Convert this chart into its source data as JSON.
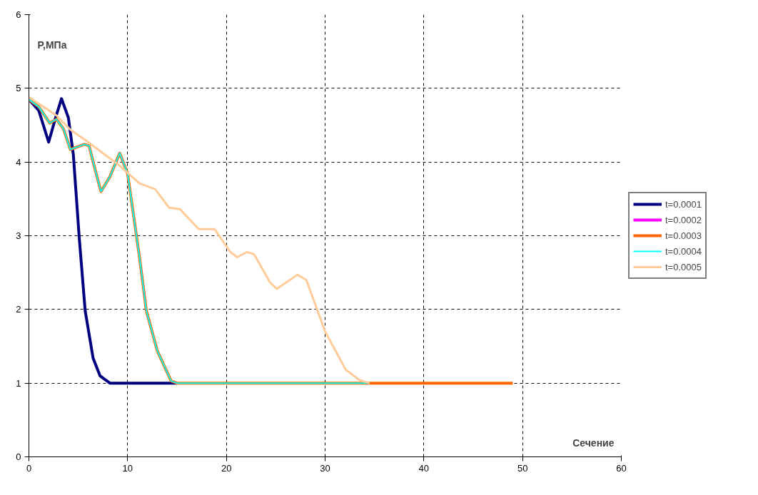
{
  "chart_data": {
    "type": "line",
    "xlabel": "Сечение",
    "ylabel": "P,МПа",
    "xlim": [
      0,
      60
    ],
    "xticks": [
      0,
      10,
      20,
      30,
      40,
      50,
      60
    ],
    "ylim": [
      0,
      6
    ],
    "yticks": [
      0,
      1,
      2,
      3,
      4,
      5,
      6
    ],
    "grid": true,
    "legend": "right",
    "marker": "none",
    "line_style": "solid",
    "series": [
      {
        "name": "t=0.0001",
        "color": "#000080",
        "x": [
          0,
          1,
          2,
          2.7,
          3.3,
          4,
          4.5,
          5.1,
          5.7,
          6.5,
          7.2,
          8.2,
          10,
          15
        ],
        "values": [
          4.85,
          4.7,
          4.27,
          4.6,
          4.86,
          4.6,
          4.1,
          2.97,
          1.98,
          1.34,
          1.1,
          1.0,
          1.0,
          1.0
        ]
      },
      {
        "name": "t=0.0002",
        "color": "#ff00ff"
      },
      {
        "name": "t=0.0003",
        "color": "#ff6600",
        "x": [
          0,
          1,
          2.1,
          2.8,
          3.5,
          4.2,
          5.6,
          6.1,
          6.7,
          7.3,
          8.2,
          9.2,
          10,
          11.2,
          11.9,
          13,
          14.4,
          15,
          30,
          49
        ],
        "values": [
          4.85,
          4.75,
          4.53,
          4.58,
          4.45,
          4.17,
          4.24,
          4.22,
          3.9,
          3.6,
          3.8,
          4.12,
          3.84,
          2.71,
          1.98,
          1.44,
          1.03,
          1.0,
          1.0,
          1.0
        ]
      },
      {
        "name": "t=0.0004",
        "color": "#00ffff",
        "x": [
          0,
          1,
          2.1,
          2.8,
          3.5,
          4.2,
          5.6,
          6.1,
          6.7,
          7.3,
          8.2,
          9.2,
          10,
          11.2,
          11.9,
          13,
          14.4,
          15,
          34.5
        ],
        "values": [
          4.85,
          4.75,
          4.53,
          4.58,
          4.45,
          4.17,
          4.24,
          4.22,
          3.9,
          3.6,
          3.8,
          4.12,
          3.84,
          2.71,
          1.98,
          1.44,
          1.03,
          1.0,
          1.0
        ]
      },
      {
        "name": "t=0.0005",
        "color": "#ffcc99",
        "x": [
          0,
          0.7,
          2.8,
          4.2,
          5.8,
          9.1,
          11.2,
          12.8,
          14.2,
          15.3,
          17.2,
          18.8,
          20.4,
          21.1,
          22.1,
          22.8,
          24.4,
          25.1,
          27.2,
          28.1,
          30,
          32.1,
          33.5,
          34.5
        ],
        "values": [
          4.88,
          4.82,
          4.63,
          4.44,
          4.29,
          3.96,
          3.71,
          3.63,
          3.38,
          3.36,
          3.09,
          3.09,
          2.78,
          2.71,
          2.78,
          2.75,
          2.37,
          2.28,
          2.47,
          2.4,
          1.7,
          1.18,
          1.04,
          1.0
        ]
      }
    ]
  }
}
